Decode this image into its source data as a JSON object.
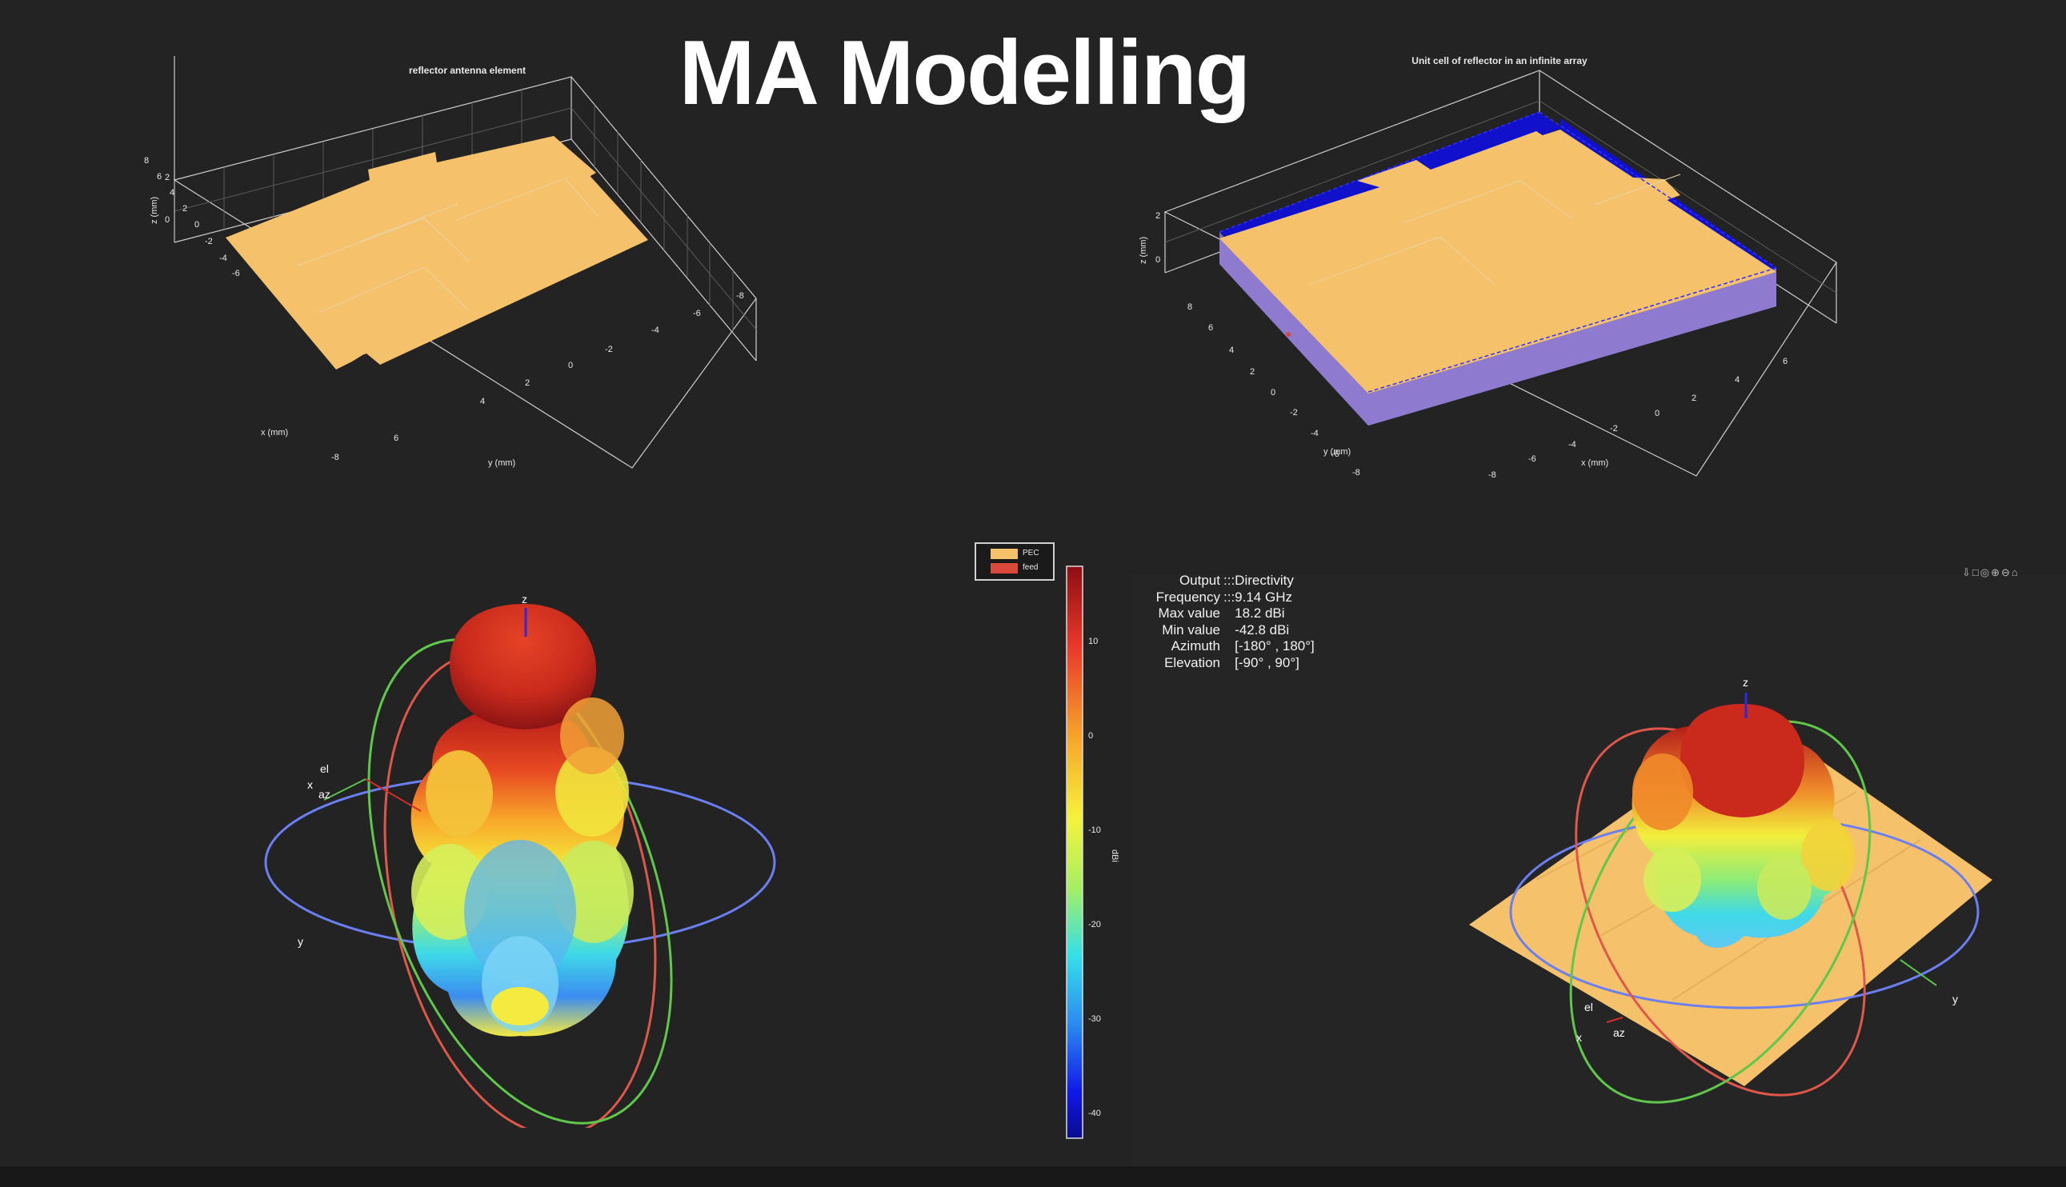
{
  "slide": {
    "title": "MA Modelling"
  },
  "plots": {
    "reflector_element": {
      "title": "reflector antenna element",
      "xlabel": "x (mm)",
      "ylabel": "y (mm)",
      "zlabel": "z (mm)",
      "x_ticks": [
        "8",
        "6",
        "4",
        "2",
        "0",
        "-2",
        "-4",
        "-6",
        "-8"
      ],
      "y_ticks": [
        "8",
        "6",
        "4",
        "2",
        "0",
        "-2",
        "-4",
        "-6",
        "-8"
      ],
      "z_ticks": [
        "2",
        "0"
      ]
    },
    "unit_cell": {
      "title": "Unit cell of reflector in an infinite array",
      "xlabel": "x (mm)",
      "ylabel": "y (mm)",
      "zlabel": "z (mm)",
      "y_ticks": [
        "8",
        "6",
        "4",
        "2",
        "0",
        "-2",
        "-4",
        "-6",
        "-8"
      ],
      "x_ticks": [
        "8",
        "6",
        "4",
        "2",
        "0",
        "-2",
        "-4",
        "-6",
        "-8"
      ],
      "z_ticks": [
        "2",
        "0"
      ]
    },
    "pattern_left": {
      "axes": {
        "z": "z",
        "x": "x",
        "y": "y",
        "el": "el",
        "az": "az"
      }
    },
    "pattern_right": {
      "axes": {
        "z": "z",
        "x": "x",
        "y": "y",
        "el": "el",
        "az": "az"
      }
    }
  },
  "legend": {
    "items": [
      {
        "label": "PEC",
        "color": "#f5c26b"
      },
      {
        "label": "feed",
        "color": "#d94a3a"
      }
    ]
  },
  "colorbar": {
    "label": "dBi",
    "ticks": [
      "10",
      "0",
      "-10",
      "-20",
      "-30",
      "-40"
    ]
  },
  "info": {
    "rows": [
      {
        "key": "Output",
        "value": "Directivity"
      },
      {
        "key": "Frequency",
        "value": "9.14 GHz"
      },
      {
        "key": "Max value",
        "value": "18.2 dBi"
      },
      {
        "key": "Min value",
        "value": "-42.8 dBi"
      },
      {
        "key": "Azimuth",
        "value": "[-180° , 180°]"
      },
      {
        "key": "Elevation",
        "value": "[-90° , 90°]"
      }
    ]
  },
  "toolbar": {
    "icons": "figure-toolbar-icons"
  },
  "colors": {
    "background": "#222322",
    "pec": "#f5c26b",
    "substrate_side": "#8e7bcf",
    "substrate_edge": "#1010d8",
    "circle_az": "#6a7ff2",
    "circle_el_red": "#e0574a",
    "circle_el_green": "#5fc84a"
  }
}
